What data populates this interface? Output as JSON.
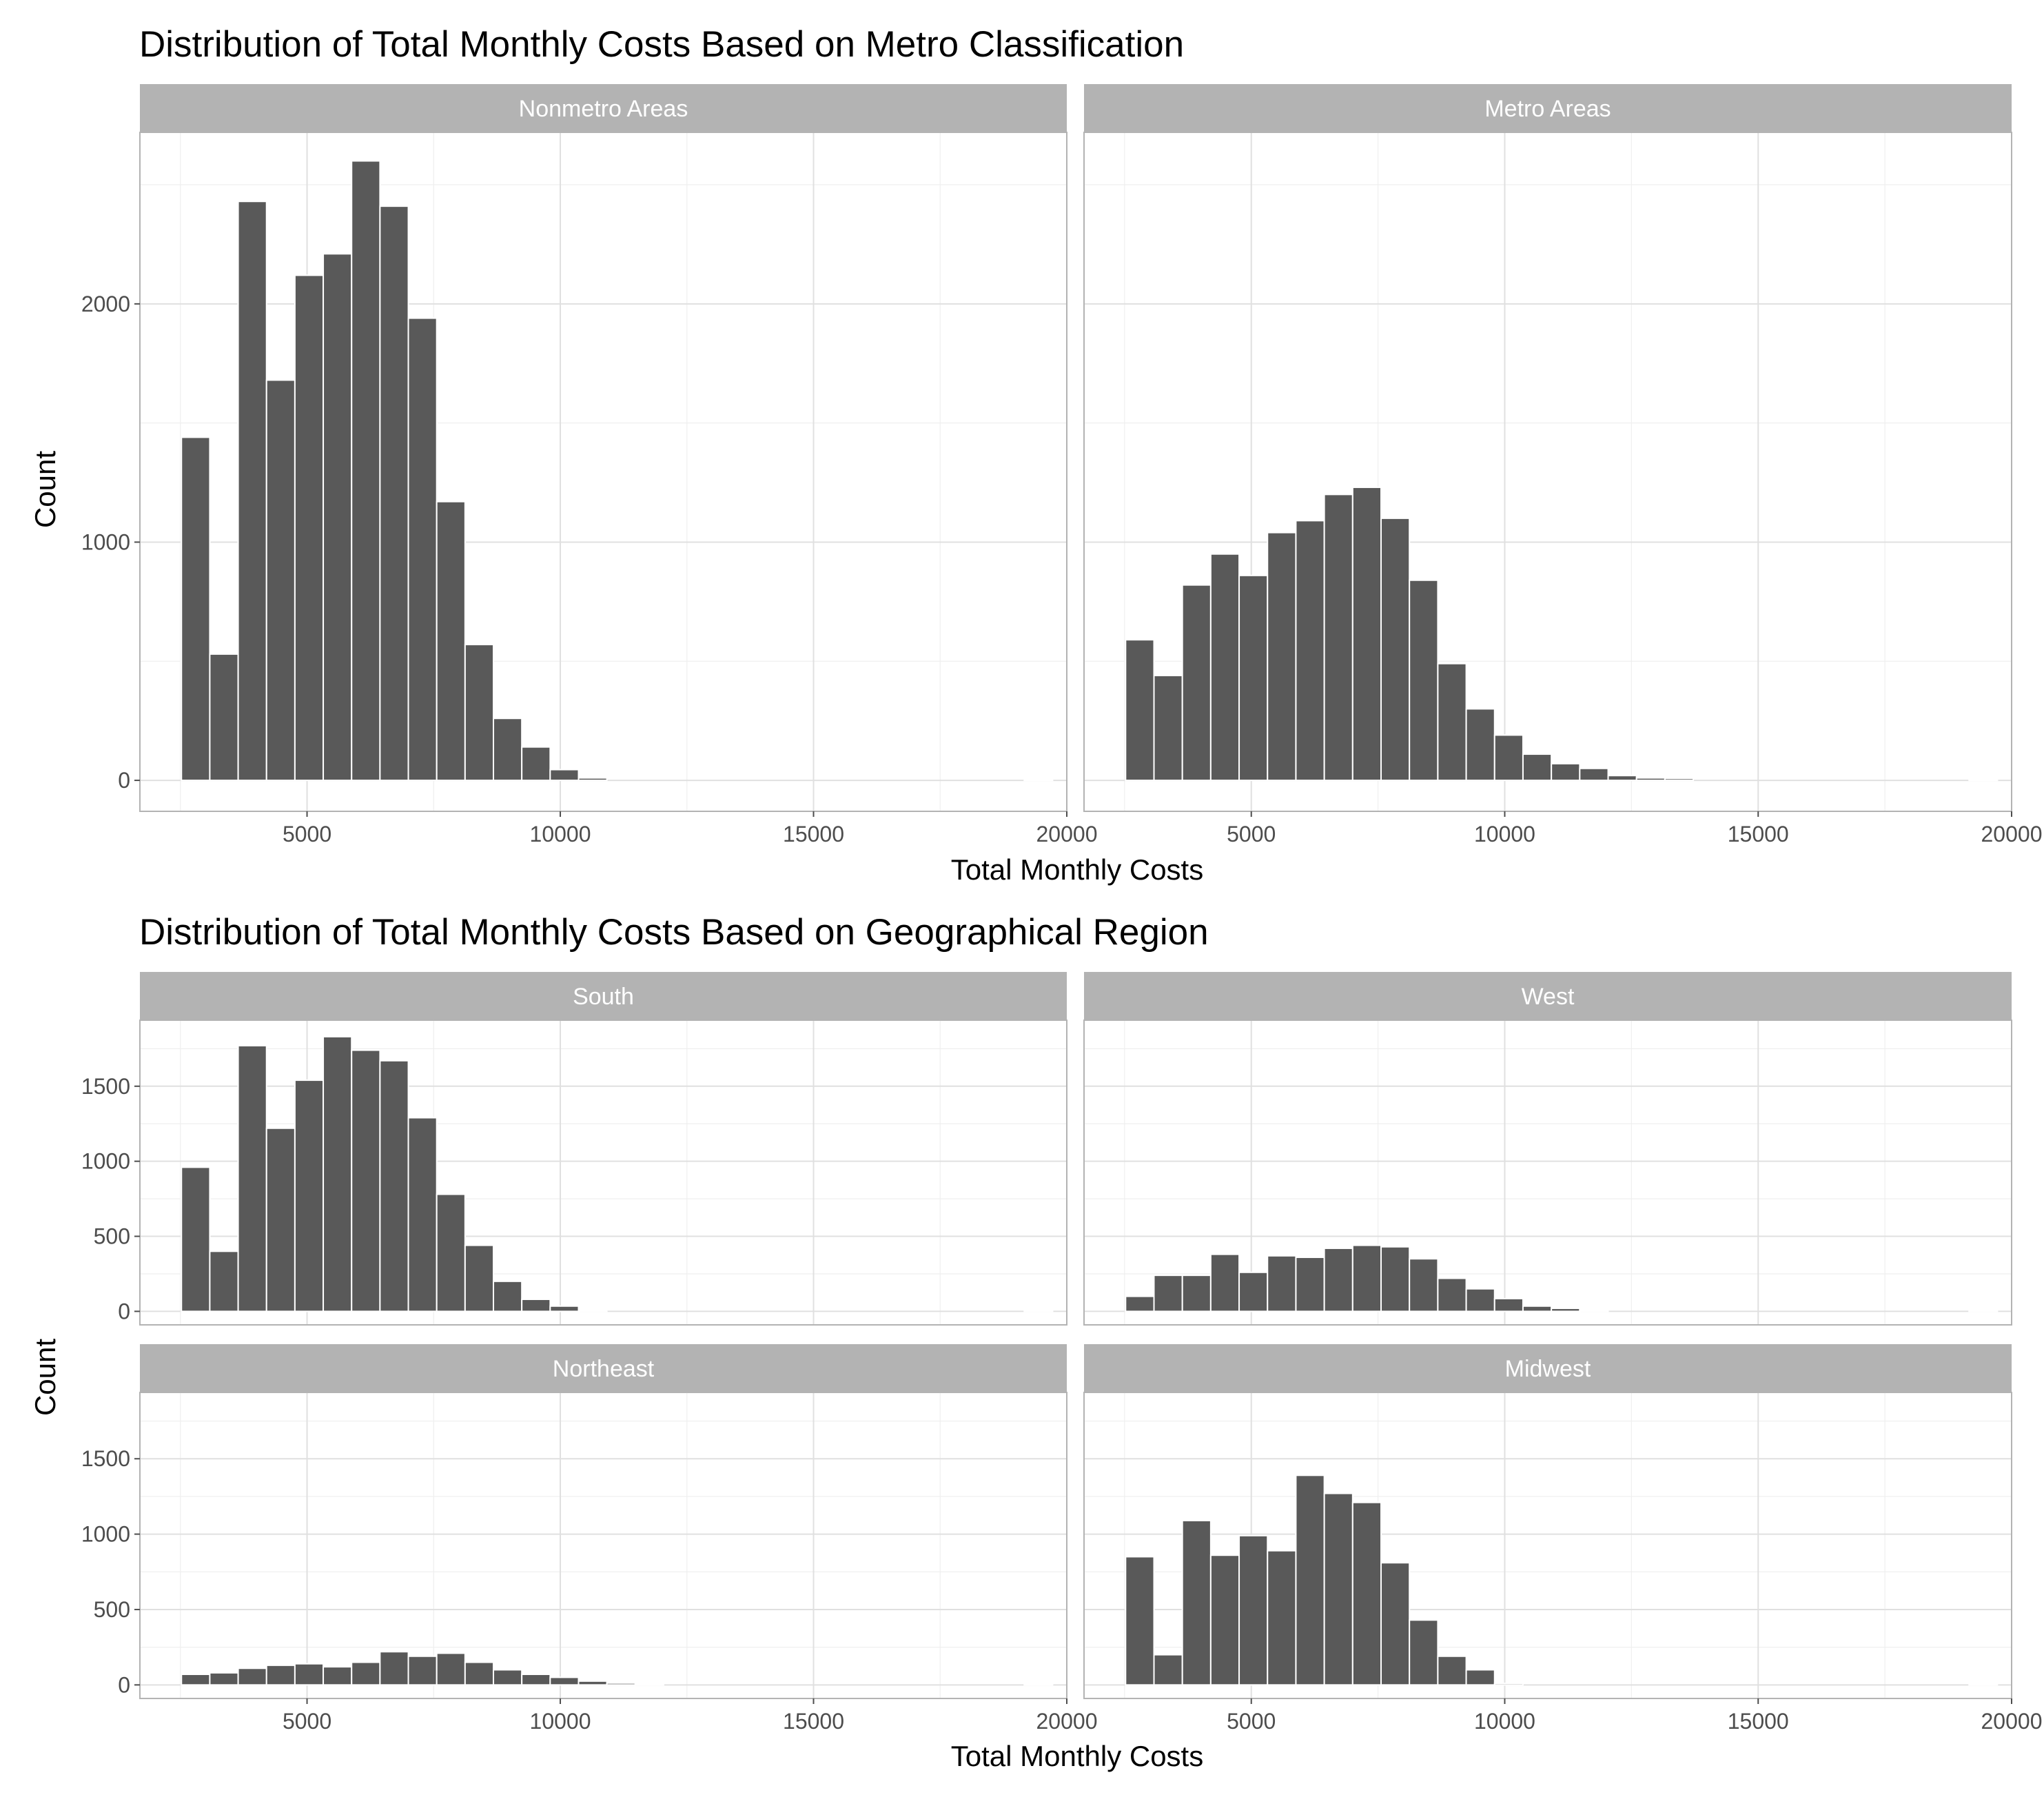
{
  "chart_data": [
    {
      "type": "bar",
      "title": "Distribution of Total Monthly Costs Based on Metro Classification",
      "xlabel": "Total Monthly Costs",
      "ylabel": "Count",
      "xlim": [
        1700,
        20000
      ],
      "ylim": [
        -130,
        2720
      ],
      "xticks": [
        5000,
        10000,
        15000,
        20000
      ],
      "yticks": [
        0,
        1000,
        2000
      ],
      "bin_width": 560,
      "panels": [
        {
          "label": "Nonmetro Areas",
          "bins": [
            {
              "x": 2800,
              "count": 1440
            },
            {
              "x": 3360,
              "count": 530
            },
            {
              "x": 3920,
              "count": 2430
            },
            {
              "x": 4480,
              "count": 1680
            },
            {
              "x": 5040,
              "count": 2120
            },
            {
              "x": 5600,
              "count": 2210
            },
            {
              "x": 6160,
              "count": 2600
            },
            {
              "x": 6720,
              "count": 2410
            },
            {
              "x": 7280,
              "count": 1940
            },
            {
              "x": 7840,
              "count": 1170
            },
            {
              "x": 8400,
              "count": 570
            },
            {
              "x": 8960,
              "count": 260
            },
            {
              "x": 9520,
              "count": 140
            },
            {
              "x": 10080,
              "count": 45
            },
            {
              "x": 10640,
              "count": 10
            },
            {
              "x": 19440,
              "count": 1
            }
          ]
        },
        {
          "label": "Metro Areas",
          "bins": [
            {
              "x": 2800,
              "count": 590
            },
            {
              "x": 3360,
              "count": 440
            },
            {
              "x": 3920,
              "count": 820
            },
            {
              "x": 4480,
              "count": 950
            },
            {
              "x": 5040,
              "count": 860
            },
            {
              "x": 5600,
              "count": 1040
            },
            {
              "x": 6160,
              "count": 1090
            },
            {
              "x": 6720,
              "count": 1200
            },
            {
              "x": 7280,
              "count": 1230
            },
            {
              "x": 7840,
              "count": 1100
            },
            {
              "x": 8400,
              "count": 840
            },
            {
              "x": 8960,
              "count": 490
            },
            {
              "x": 9520,
              "count": 300
            },
            {
              "x": 10080,
              "count": 190
            },
            {
              "x": 10640,
              "count": 110
            },
            {
              "x": 11200,
              "count": 70
            },
            {
              "x": 11760,
              "count": 50
            },
            {
              "x": 12320,
              "count": 20
            },
            {
              "x": 12880,
              "count": 10
            },
            {
              "x": 13440,
              "count": 8
            },
            {
              "x": 19440,
              "count": 2
            }
          ]
        }
      ]
    },
    {
      "type": "bar",
      "title": "Distribution of Total Monthly Costs Based on Geographical Region",
      "xlabel": "Total Monthly Costs",
      "ylabel": "Count",
      "xlim": [
        1700,
        20000
      ],
      "ylim": [
        -90,
        1940
      ],
      "xticks": [
        5000,
        10000,
        15000,
        20000
      ],
      "yticks": [
        0,
        500,
        1000,
        1500
      ],
      "bin_width": 560,
      "panels": [
        {
          "label": "South",
          "bins": [
            {
              "x": 2800,
              "count": 960
            },
            {
              "x": 3360,
              "count": 400
            },
            {
              "x": 3920,
              "count": 1770
            },
            {
              "x": 4480,
              "count": 1220
            },
            {
              "x": 5040,
              "count": 1540
            },
            {
              "x": 5600,
              "count": 1830
            },
            {
              "x": 6160,
              "count": 1740
            },
            {
              "x": 6720,
              "count": 1670
            },
            {
              "x": 7280,
              "count": 1290
            },
            {
              "x": 7840,
              "count": 780
            },
            {
              "x": 8400,
              "count": 440
            },
            {
              "x": 8960,
              "count": 200
            },
            {
              "x": 9520,
              "count": 80
            },
            {
              "x": 10080,
              "count": 35
            },
            {
              "x": 10640,
              "count": 8
            },
            {
              "x": 19440,
              "count": 1
            }
          ]
        },
        {
          "label": "West",
          "bins": [
            {
              "x": 2800,
              "count": 100
            },
            {
              "x": 3360,
              "count": 240
            },
            {
              "x": 3920,
              "count": 240
            },
            {
              "x": 4480,
              "count": 380
            },
            {
              "x": 5040,
              "count": 260
            },
            {
              "x": 5600,
              "count": 370
            },
            {
              "x": 6160,
              "count": 360
            },
            {
              "x": 6720,
              "count": 420
            },
            {
              "x": 7280,
              "count": 440
            },
            {
              "x": 7840,
              "count": 430
            },
            {
              "x": 8400,
              "count": 350
            },
            {
              "x": 8960,
              "count": 220
            },
            {
              "x": 9520,
              "count": 150
            },
            {
              "x": 10080,
              "count": 85
            },
            {
              "x": 10640,
              "count": 35
            },
            {
              "x": 11200,
              "count": 20
            },
            {
              "x": 11760,
              "count": 8
            },
            {
              "x": 19440,
              "count": 1
            }
          ]
        },
        {
          "label": "Northeast",
          "bins": [
            {
              "x": 2800,
              "count": 70
            },
            {
              "x": 3360,
              "count": 80
            },
            {
              "x": 3920,
              "count": 110
            },
            {
              "x": 4480,
              "count": 130
            },
            {
              "x": 5040,
              "count": 140
            },
            {
              "x": 5600,
              "count": 120
            },
            {
              "x": 6160,
              "count": 150
            },
            {
              "x": 6720,
              "count": 220
            },
            {
              "x": 7280,
              "count": 190
            },
            {
              "x": 7840,
              "count": 210
            },
            {
              "x": 8400,
              "count": 150
            },
            {
              "x": 8960,
              "count": 100
            },
            {
              "x": 9520,
              "count": 70
            },
            {
              "x": 10080,
              "count": 50
            },
            {
              "x": 10640,
              "count": 25
            },
            {
              "x": 11200,
              "count": 12
            },
            {
              "x": 11760,
              "count": 5
            },
            {
              "x": 19440,
              "count": 1
            }
          ]
        },
        {
          "label": "Midwest",
          "bins": [
            {
              "x": 2800,
              "count": 850
            },
            {
              "x": 3360,
              "count": 200
            },
            {
              "x": 3920,
              "count": 1090
            },
            {
              "x": 4480,
              "count": 860
            },
            {
              "x": 5040,
              "count": 990
            },
            {
              "x": 5600,
              "count": 890
            },
            {
              "x": 6160,
              "count": 1390
            },
            {
              "x": 6720,
              "count": 1270
            },
            {
              "x": 7280,
              "count": 1210
            },
            {
              "x": 7840,
              "count": 810
            },
            {
              "x": 8400,
              "count": 430
            },
            {
              "x": 8960,
              "count": 190
            },
            {
              "x": 9520,
              "count": 100
            },
            {
              "x": 10080,
              "count": 10
            },
            {
              "x": 19440,
              "count": 1
            }
          ]
        }
      ]
    }
  ]
}
